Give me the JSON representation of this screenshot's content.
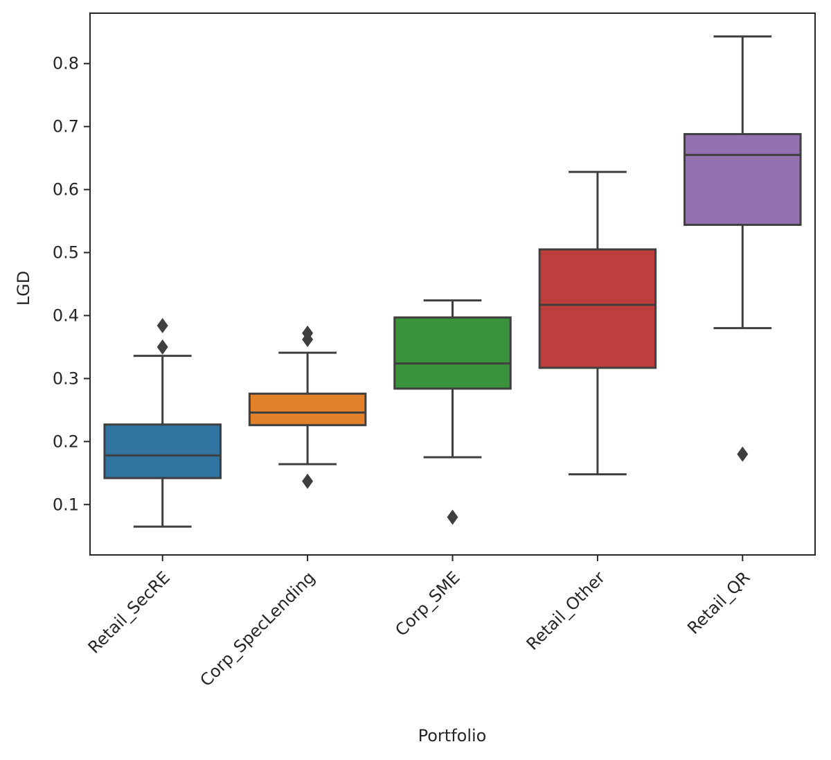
{
  "chart_data": {
    "type": "box",
    "xlabel": "Portfolio",
    "ylabel": "LGD",
    "ylim": [
      0.02,
      0.88
    ],
    "yticks": [
      0.1,
      0.2,
      0.3,
      0.4,
      0.5,
      0.6,
      0.7,
      0.8
    ],
    "ytick_labels": [
      "0.1",
      "0.2",
      "0.3",
      "0.4",
      "0.5",
      "0.6",
      "0.7",
      "0.8"
    ],
    "grid": false,
    "categories": [
      "Retail_SecRE",
      "Corp_SpecLending",
      "Corp_SME",
      "Retail_Other",
      "Retail_QR"
    ],
    "boxes": [
      {
        "name": "Retail_SecRE",
        "color": "#3274a1",
        "whisker_low": 0.065,
        "q1": 0.142,
        "median": 0.178,
        "q3": 0.227,
        "whisker_high": 0.336,
        "outliers": [
          0.35,
          0.384
        ]
      },
      {
        "name": "Corp_SpecLending",
        "color": "#e1812c",
        "whisker_low": 0.164,
        "q1": 0.226,
        "median": 0.246,
        "q3": 0.276,
        "whisker_high": 0.341,
        "outliers": [
          0.137,
          0.362,
          0.372
        ]
      },
      {
        "name": "Corp_SME",
        "color": "#3a923a",
        "whisker_low": 0.175,
        "q1": 0.284,
        "median": 0.324,
        "q3": 0.397,
        "whisker_high": 0.424,
        "outliers": [
          0.08
        ]
      },
      {
        "name": "Retail_Other",
        "color": "#c03d3e",
        "whisker_low": 0.148,
        "q1": 0.317,
        "median": 0.417,
        "q3": 0.505,
        "whisker_high": 0.628,
        "outliers": []
      },
      {
        "name": "Retail_QR",
        "color": "#9372b2",
        "whisker_low": 0.38,
        "q1": 0.544,
        "median": 0.655,
        "q3": 0.688,
        "whisker_high": 0.843,
        "outliers": [
          0.18
        ]
      }
    ]
  }
}
